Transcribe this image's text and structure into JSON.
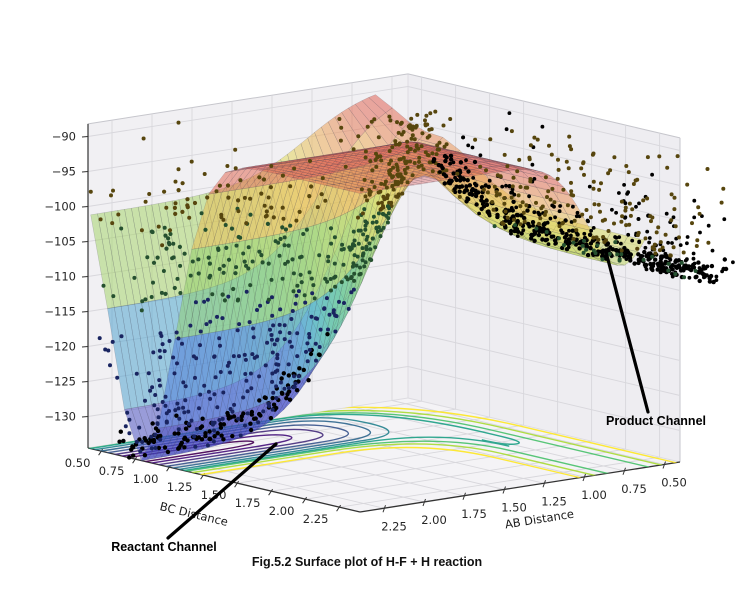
{
  "chart_data": {
    "type": "surface",
    "projection": "3d",
    "title": "Fig.5.2 Surface plot of H-F + H reaction",
    "xlabel": "BC Distance",
    "ylabel": "AB Distance",
    "zlabel": "",
    "x_ticks": [
      "0.50",
      "0.75",
      "1.00",
      "1.25",
      "1.50",
      "1.75",
      "2.00",
      "2.25"
    ],
    "x_tick_vals": [
      0.5,
      0.75,
      1.0,
      1.25,
      1.5,
      1.75,
      2.0,
      2.25
    ],
    "y_ticks": [
      "2.25",
      "2.00",
      "1.75",
      "1.50",
      "1.25",
      "1.00",
      "0.75",
      "0.50"
    ],
    "y_tick_vals": [
      2.25,
      2.0,
      1.75,
      1.5,
      1.25,
      1.0,
      0.75,
      0.5
    ],
    "z_ticks": [
      "−90",
      "−95",
      "−100",
      "−105",
      "−110",
      "−115",
      "−120",
      "−125",
      "−130"
    ],
    "z_tick_vals": [
      -90,
      -95,
      -100,
      -105,
      -110,
      -115,
      -120,
      -125,
      -130
    ],
    "x_range": [
      0.4,
      2.4
    ],
    "y_range": [
      0.4,
      2.4
    ],
    "z_range": [
      -134.5,
      -88.2
    ],
    "grid": true,
    "legend": false,
    "surface": {
      "description": "LEPS-type potential energy surface; deep reactant valley (H-F bound) ~ -134 along BC~0.8, shallower product valley ~ -105 along AB~0.76, plateau cap ~ -89",
      "plateau": -89,
      "z_floor": -134.5,
      "reactant": {
        "center": 0.8,
        "width": 0.33,
        "depth": 45.6,
        "open_center": 1.05,
        "open_width": 0.2
      },
      "product": {
        "center": 0.76,
        "width": 0.3,
        "depth": 16.2,
        "open_center": 1.05,
        "open_width": 0.2
      },
      "bc_domain": [
        0.42,
        2.4
      ],
      "ab_domain": [
        0.62,
        2.4
      ],
      "mesh": {
        "n_bc": 16,
        "n_ab": 42
      }
    },
    "projection_contours": {
      "plane": "z-bottom",
      "colormap": "viridis",
      "levels": [
        {
          "v": -95.0,
          "color": "#fde725"
        },
        {
          "v": -99.0,
          "color": "#a8db34"
        },
        {
          "v": -102.5,
          "color": "#4ac16d",
          "bc_end": 2.6
        },
        {
          "v": -104.5,
          "color": "#1fa187",
          "bc_end": 1.62
        },
        {
          "v": -108.0,
          "color": "#26828e"
        },
        {
          "v": -113.0,
          "color": "#31688e"
        },
        {
          "v": -119.0,
          "color": "#39568c"
        },
        {
          "v": -125.0,
          "color": "#472f7d"
        },
        {
          "v": -130.0,
          "color": "#46137c"
        },
        {
          "v": -133.0,
          "color": "#440154"
        }
      ]
    },
    "scatter_clusters": [
      {
        "name": "reactant-valley-stream",
        "n": 120,
        "bc": {
          "g": [
            0.8,
            0.035
          ]
        },
        "ab": {
          "u": [
            1.28,
            2.52
          ]
        },
        "dz": {
          "u": [
            0.5,
            3.5
          ]
        },
        "color": "#000000",
        "r": 2.2
      },
      {
        "name": "reactant-wall-spray",
        "n": 330,
        "bc": {
          "g": [
            0.8,
            0.17
          ]
        },
        "ab": {
          "u": [
            1.22,
            2.5
          ]
        },
        "dz": {
          "e": 16
        },
        "color": "auto",
        "r": 2.0
      },
      {
        "name": "saddle-cluster",
        "n": 260,
        "bc": {
          "g": [
            1.05,
            0.14
          ]
        },
        "ab": {
          "g": [
            1.08,
            0.15
          ]
        },
        "dz": {
          "e": 8
        },
        "color": "auto",
        "r": 2.0
      },
      {
        "name": "product-stream",
        "n": 300,
        "bc": {
          "u": [
            1.05,
            3.1
          ]
        },
        "ab": {
          "g": [
            0.76,
            0.05
          ]
        },
        "dz": {
          "u": [
            0.3,
            2.5
          ]
        },
        "color": "#000000",
        "r": 2.2
      },
      {
        "name": "product-spray",
        "n": 200,
        "bc": {
          "u": [
            1.15,
            3.1
          ]
        },
        "ab": {
          "g": [
            0.76,
            0.09
          ]
        },
        "dz": {
          "e": 6
        },
        "color": "#000000",
        "r": 1.9
      },
      {
        "name": "product-wall-spray",
        "n": 200,
        "bc": {
          "u": [
            1.5,
            2.9
          ]
        },
        "ab": {
          "g": [
            0.8,
            0.13
          ]
        },
        "dz": {
          "e": 10
        },
        "color": "auto",
        "r": 2.0
      },
      {
        "name": "upper-wall-sparse",
        "n": 80,
        "bc": {
          "u": [
            0.52,
            1.0
          ]
        },
        "ab": {
          "u": [
            1.35,
            2.3
          ]
        },
        "z": {
          "u": [
            -113,
            -96
          ]
        },
        "color": "auto",
        "r": 2.1
      }
    ],
    "annotations": [
      {
        "text": "Reactant Channel"
      },
      {
        "text": "Product Channel"
      }
    ],
    "style": {
      "background": "#ffffff",
      "pane_left": "#f1f0f3",
      "pane_right": "#eeedf1",
      "pane_bottom": "#f4f3f6",
      "grid": "#d8d7dc",
      "axis_line": "#333333",
      "tick_color": "#262626",
      "box_edge": "#c6c6cc",
      "hidden_edge": "#dcdbe0",
      "mesh_line": "rgba(70,70,85,0.40)",
      "surface_alpha": 0.5,
      "cap_alpha": 0.33,
      "colormap": [
        [
          -134.5,
          "#3b3eb3"
        ],
        [
          -127.5,
          "#4750cd"
        ],
        [
          -123.0,
          "#4b6fdb"
        ],
        [
          -120.0,
          "#40aec6"
        ],
        [
          -116.0,
          "#52c193"
        ],
        [
          -111.5,
          "#7aca6e"
        ],
        [
          -107.0,
          "#a5d35f"
        ],
        [
          -101.5,
          "#e0d94e"
        ],
        [
          -96.5,
          "#eda64b"
        ],
        [
          -92.5,
          "#e2614a"
        ],
        [
          -89.0,
          "#d94444"
        ]
      ],
      "dot_colors": {
        "front": "#000000",
        "through_orange": "#57460e",
        "through_green": "#25502f",
        "through_blue": "#192460"
      }
    }
  }
}
